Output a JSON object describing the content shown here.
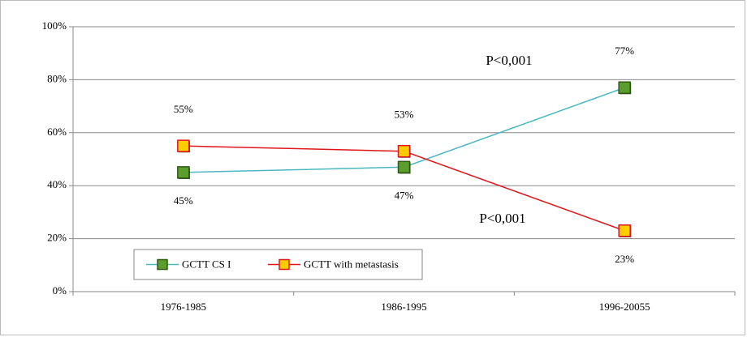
{
  "chart_data": {
    "type": "line",
    "categories": [
      "1976-1985",
      "1986-1995",
      "1996-20055"
    ],
    "series": [
      {
        "name": "GCTT CS I",
        "color": "#4bb8c0",
        "marker_color": "#5c9e2e",
        "marker_edge": "#2f5a14",
        "values": [
          45,
          47,
          77
        ],
        "value_labels": [
          "45%",
          "47%",
          "77%"
        ]
      },
      {
        "name": "GCTT with metastasis",
        "color": "#e0161b",
        "marker_color": "#ffcc00",
        "marker_edge": "#e0161b",
        "values": [
          55,
          53,
          23
        ],
        "value_labels": [
          "55%",
          "53%",
          "23%"
        ]
      }
    ],
    "ylim": [
      0,
      100
    ],
    "yticks": [
      {
        "value": 0,
        "label": "0%"
      },
      {
        "value": 20,
        "label": "20%"
      },
      {
        "value": 40,
        "label": "40%"
      },
      {
        "value": 60,
        "label": "60%"
      },
      {
        "value": 80,
        "label": "80%"
      },
      {
        "value": 100,
        "label": "100%"
      }
    ],
    "grid": true,
    "annotations": [
      "P<0,001",
      "P<0,001"
    ]
  }
}
